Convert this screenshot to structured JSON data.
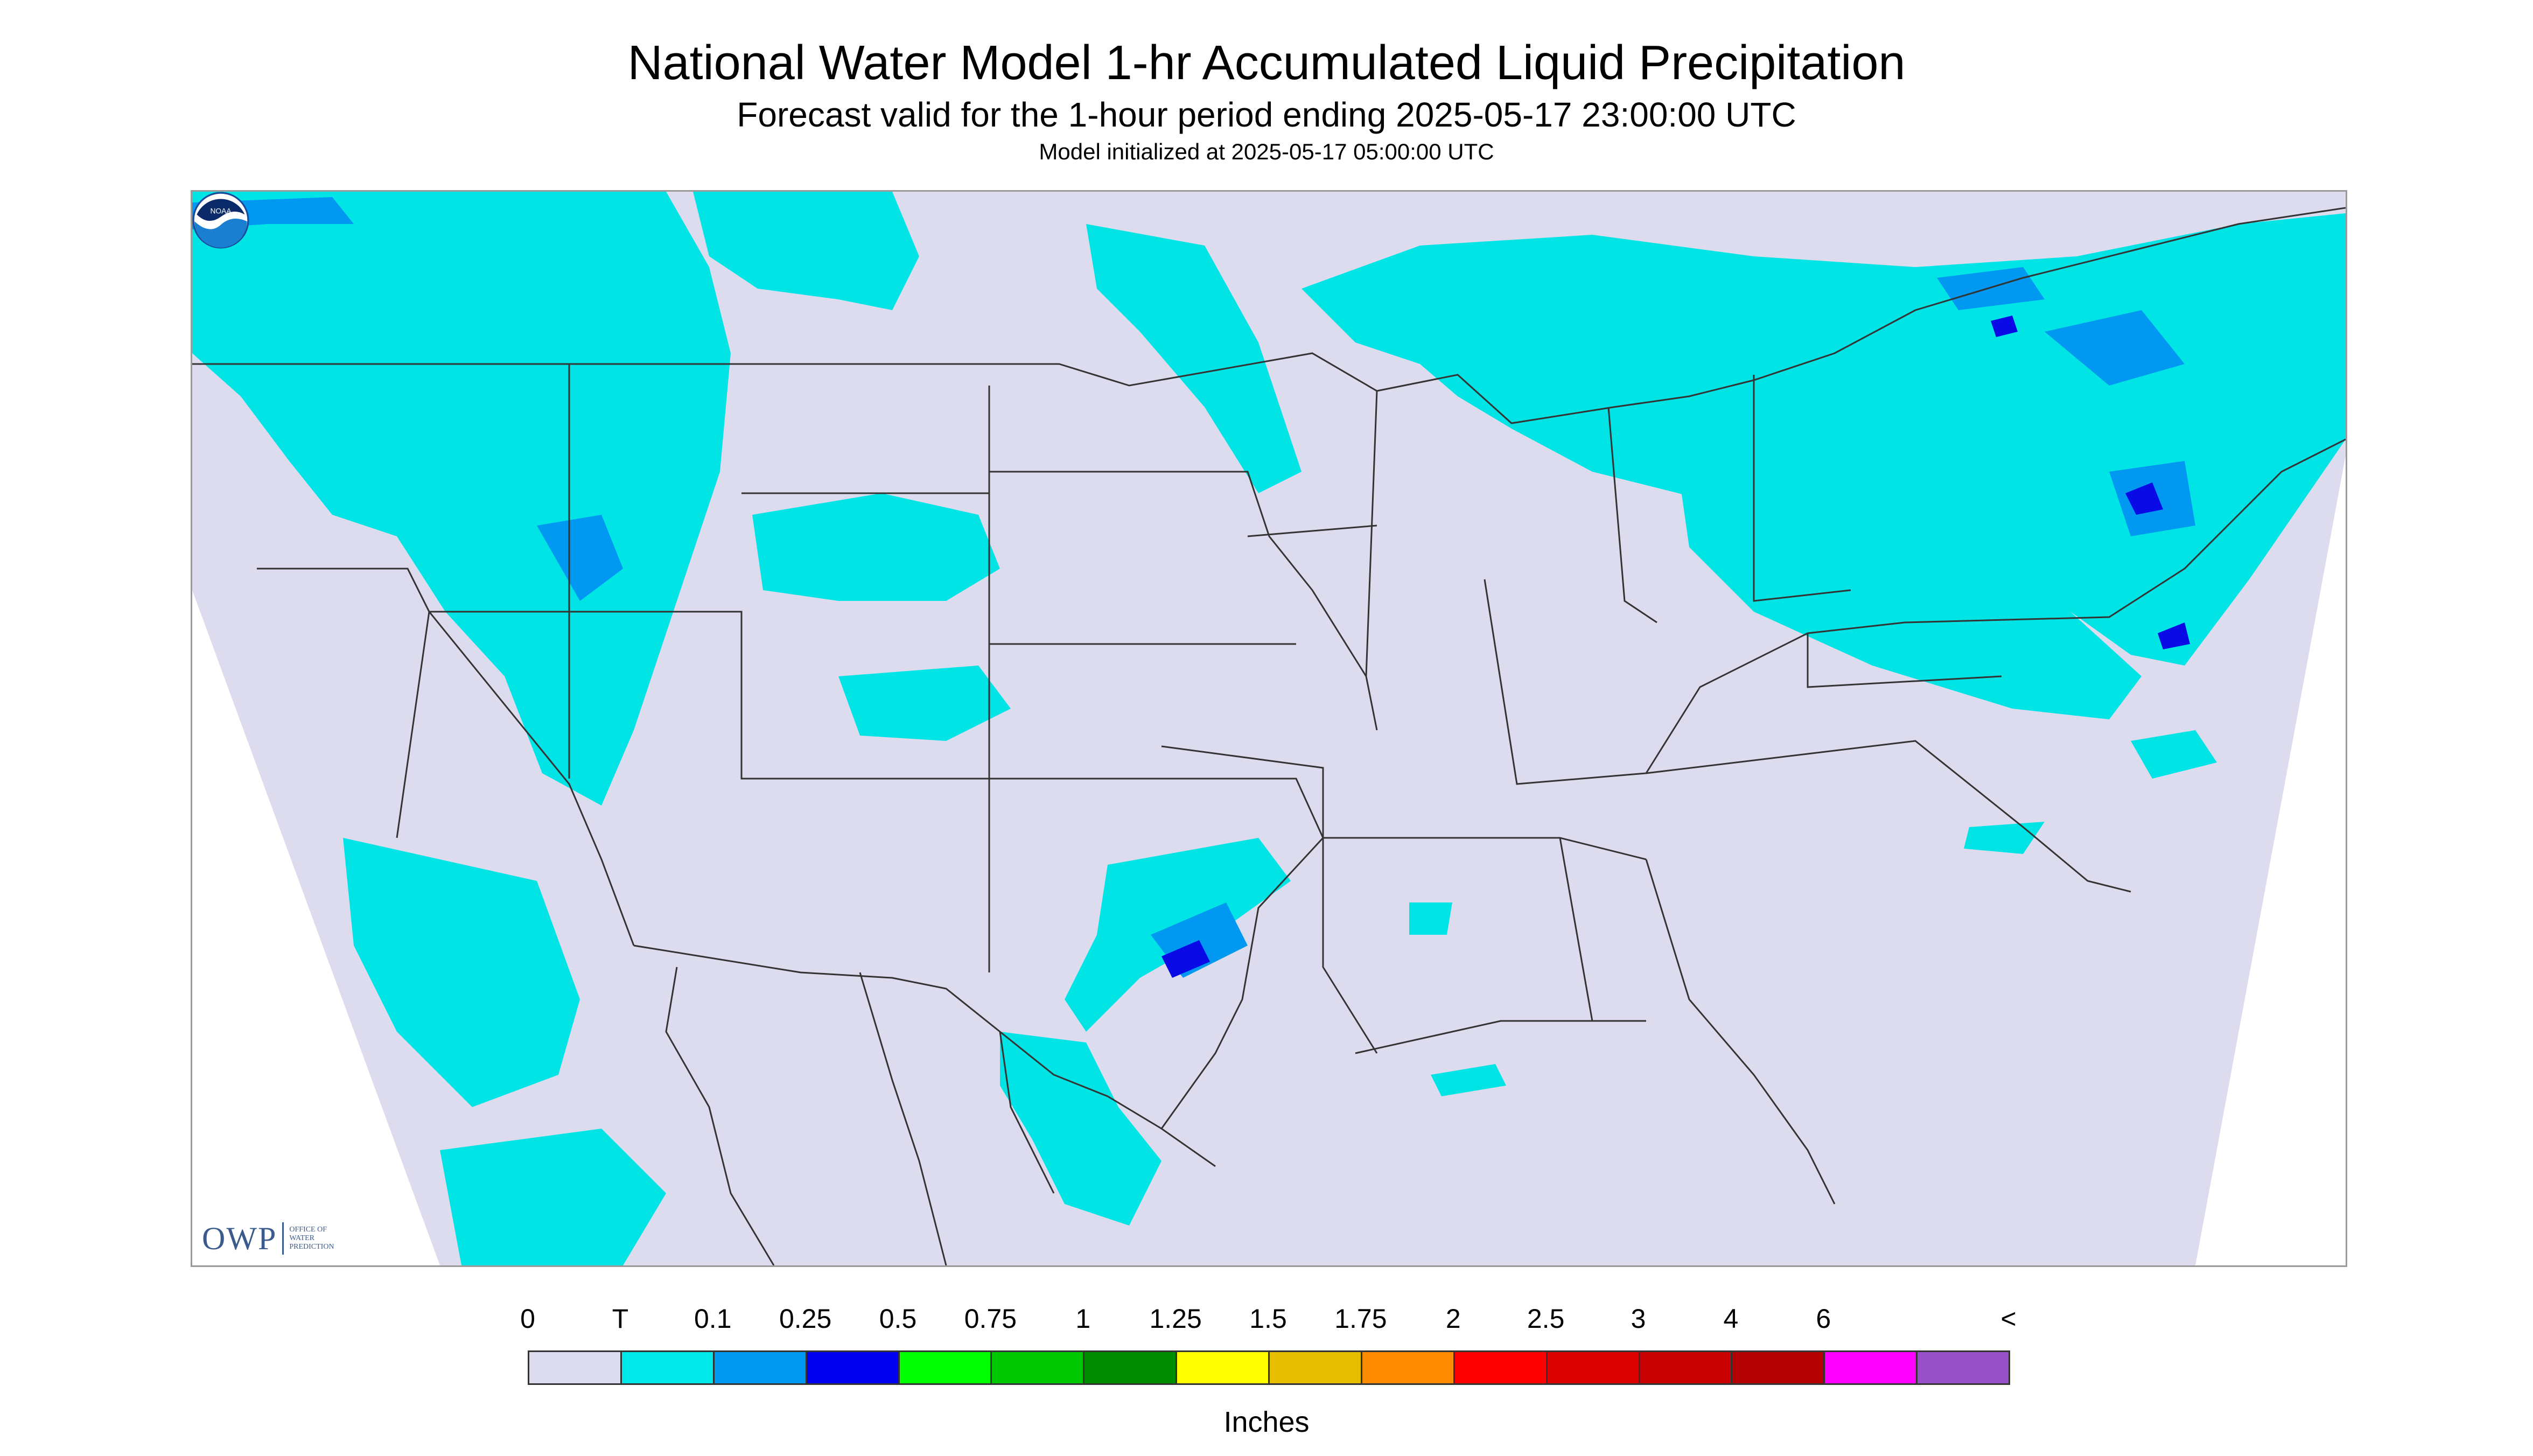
{
  "header": {
    "title": "National Water Model 1-hr Accumulated Liquid Precipitation",
    "subtitle": "Forecast valid for the 1-hour period ending 2025-05-17 23:00:00 UTC",
    "init": "Model initialized at 2025-05-17 05:00:00 UTC"
  },
  "map": {
    "background_color": "#dcdcee",
    "outside_color": "#ffffff",
    "precip_light_color": "#00e4e6",
    "precip_medium_color": "#0098f0",
    "precip_heavy_color": "#0a0ae6",
    "border_color": "#333333"
  },
  "legend": {
    "labels": [
      "0",
      "T",
      "0.1",
      "0.25",
      "0.5",
      "0.75",
      "1",
      "1.25",
      "1.5",
      "1.75",
      "2",
      "2.5",
      "3",
      "4",
      "6",
      "<"
    ],
    "colors": [
      "#dcdcee",
      "#00e8e8",
      "#0098f0",
      "#0000f0",
      "#00ff00",
      "#00c800",
      "#008c00",
      "#ffff00",
      "#e6be00",
      "#ff8c00",
      "#ff0000",
      "#dc0000",
      "#c80000",
      "#b40000",
      "#ff00ff",
      "#9650c8"
    ],
    "units": "Inches"
  },
  "logos": {
    "owp_main": "OWP",
    "owp_line1": "OFFICE OF",
    "owp_line2": "WATER",
    "owp_line3": "PREDICTION",
    "noaa_text": "NOAA"
  }
}
